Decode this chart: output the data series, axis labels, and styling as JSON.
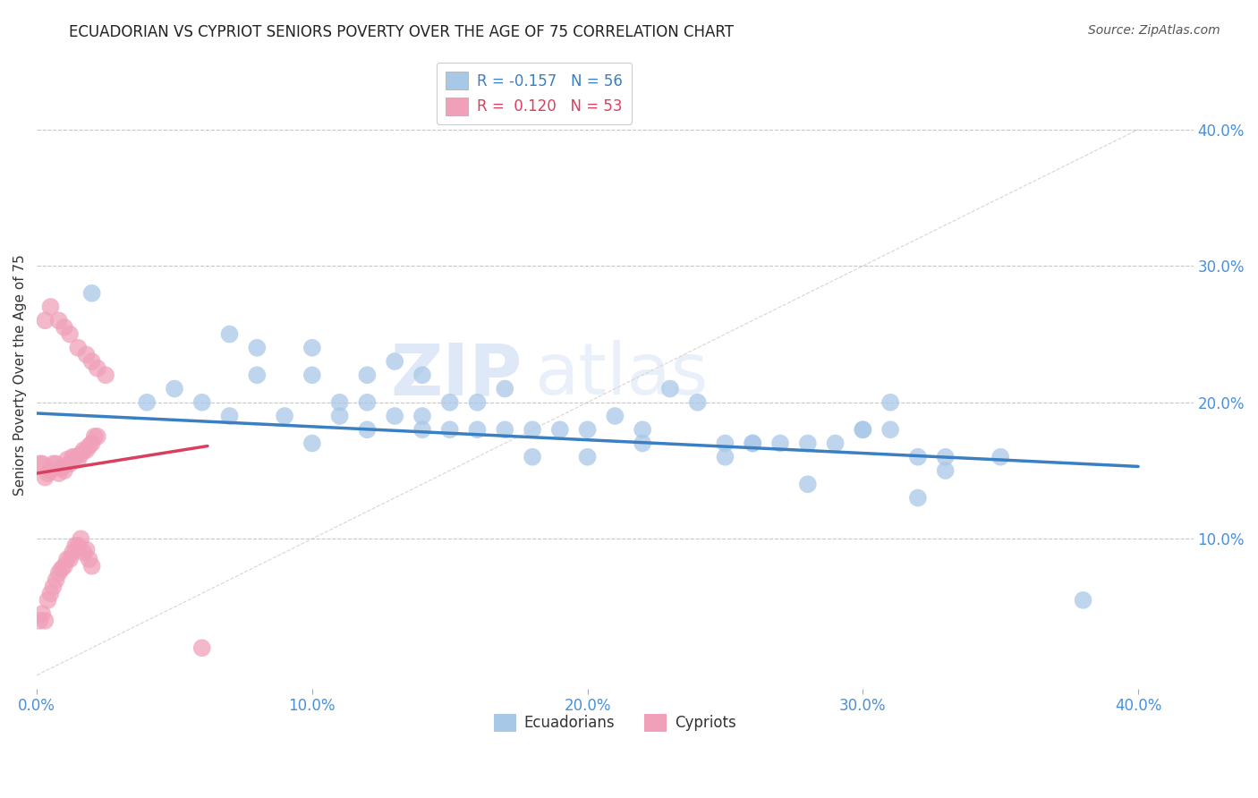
{
  "title": "ECUADORIAN VS CYPRIOT SENIORS POVERTY OVER THE AGE OF 75 CORRELATION CHART",
  "source": "Source: ZipAtlas.com",
  "ylabel": "Seniors Poverty Over the Age of 75",
  "xlim": [
    0.0,
    0.42
  ],
  "ylim": [
    -0.01,
    0.45
  ],
  "x_ticks": [
    0.0,
    0.1,
    0.2,
    0.3,
    0.4
  ],
  "y_ticks": [
    0.1,
    0.2,
    0.3,
    0.4
  ],
  "x_tick_labels": [
    "0.0%",
    "10.0%",
    "20.0%",
    "30.0%",
    "40.0%"
  ],
  "y_tick_labels": [
    "10.0%",
    "20.0%",
    "30.0%",
    "40.0%"
  ],
  "background_color": "#ffffff",
  "grid_color": "#c8c8c8",
  "blue_scatter_color": "#a8c8e8",
  "pink_scatter_color": "#f0a0b8",
  "blue_line_color": "#3a7fc1",
  "pink_line_color": "#d94060",
  "legend_R_blue": "-0.157",
  "legend_N_blue": "56",
  "legend_R_pink": "0.120",
  "legend_N_pink": "53",
  "legend_label_blue": "Ecuadorians",
  "legend_label_pink": "Cypriots",
  "ecu_x": [
    0.02,
    0.07,
    0.08,
    0.1,
    0.1,
    0.11,
    0.12,
    0.12,
    0.13,
    0.14,
    0.14,
    0.15,
    0.16,
    0.17,
    0.18,
    0.19,
    0.2,
    0.21,
    0.22,
    0.23,
    0.24,
    0.25,
    0.26,
    0.27,
    0.28,
    0.29,
    0.3,
    0.31,
    0.32,
    0.33,
    0.35,
    0.38,
    0.04,
    0.05,
    0.06,
    0.07,
    0.08,
    0.09,
    0.1,
    0.11,
    0.12,
    0.13,
    0.14,
    0.15,
    0.16,
    0.17,
    0.18,
    0.2,
    0.22,
    0.25,
    0.26,
    0.28,
    0.3,
    0.31,
    0.32,
    0.33
  ],
  "ecu_y": [
    0.28,
    0.25,
    0.24,
    0.24,
    0.22,
    0.2,
    0.22,
    0.2,
    0.23,
    0.22,
    0.19,
    0.2,
    0.2,
    0.21,
    0.18,
    0.18,
    0.18,
    0.19,
    0.18,
    0.21,
    0.2,
    0.17,
    0.17,
    0.17,
    0.17,
    0.17,
    0.18,
    0.2,
    0.16,
    0.16,
    0.16,
    0.055,
    0.2,
    0.21,
    0.2,
    0.19,
    0.22,
    0.19,
    0.17,
    0.19,
    0.18,
    0.19,
    0.18,
    0.18,
    0.18,
    0.18,
    0.16,
    0.16,
    0.17,
    0.16,
    0.17,
    0.14,
    0.18,
    0.18,
    0.13,
    0.15
  ],
  "cyp_x": [
    0.001,
    0.002,
    0.003,
    0.004,
    0.005,
    0.006,
    0.007,
    0.008,
    0.009,
    0.01,
    0.011,
    0.012,
    0.013,
    0.014,
    0.015,
    0.016,
    0.017,
    0.018,
    0.019,
    0.02,
    0.021,
    0.022,
    0.001,
    0.002,
    0.003,
    0.004,
    0.005,
    0.006,
    0.007,
    0.008,
    0.009,
    0.01,
    0.011,
    0.012,
    0.013,
    0.014,
    0.015,
    0.016,
    0.017,
    0.018,
    0.019,
    0.02,
    0.003,
    0.005,
    0.008,
    0.01,
    0.012,
    0.015,
    0.018,
    0.02,
    0.022,
    0.025,
    0.06
  ],
  "cyp_y": [
    0.155,
    0.155,
    0.145,
    0.148,
    0.15,
    0.155,
    0.155,
    0.148,
    0.152,
    0.15,
    0.158,
    0.155,
    0.16,
    0.16,
    0.158,
    0.162,
    0.165,
    0.165,
    0.168,
    0.17,
    0.175,
    0.175,
    0.04,
    0.045,
    0.04,
    0.055,
    0.06,
    0.065,
    0.07,
    0.075,
    0.078,
    0.08,
    0.085,
    0.085,
    0.09,
    0.095,
    0.095,
    0.1,
    0.09,
    0.092,
    0.085,
    0.08,
    0.26,
    0.27,
    0.26,
    0.255,
    0.25,
    0.24,
    0.235,
    0.23,
    0.225,
    0.22,
    0.02
  ],
  "ecu_line_x": [
    0.0,
    0.4
  ],
  "ecu_line_y": [
    0.192,
    0.153
  ],
  "cyp_line_x": [
    0.0,
    0.062
  ],
  "cyp_line_y": [
    0.148,
    0.168
  ],
  "diag_line_x": [
    0.0,
    0.4
  ],
  "diag_line_y": [
    0.0,
    0.4
  ]
}
